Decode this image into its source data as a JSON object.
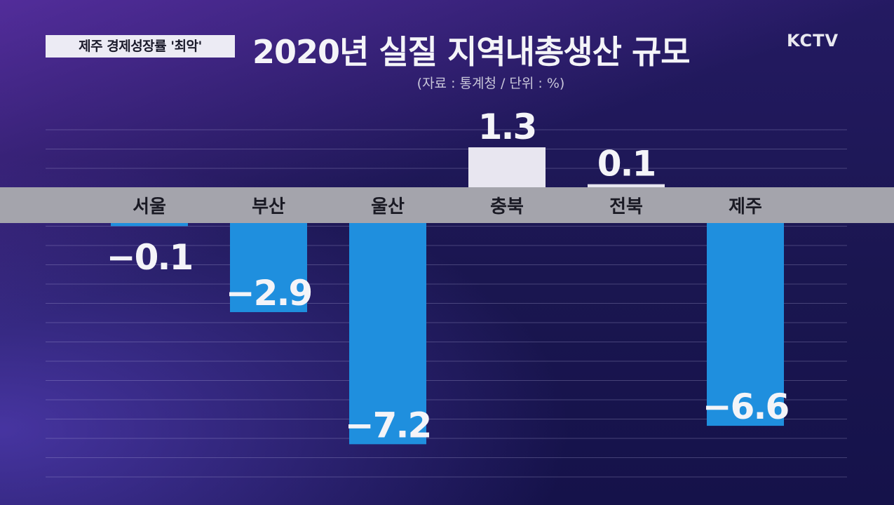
{
  "header": {
    "tag": "제주 경제성장률 '최악'",
    "logo": "KCTV"
  },
  "chart_data": {
    "type": "bar",
    "title": "2020년 실질 지역내총생산 규모",
    "subtitle": "(자료 : 통계청 / 단위 : %)",
    "categories": [
      "서울",
      "부산",
      "울산",
      "충북",
      "전북",
      "제주"
    ],
    "values": [
      -0.1,
      -2.9,
      -7.2,
      1.3,
      0.1,
      -6.6
    ],
    "value_labels": [
      "−0.1",
      "−2.9",
      "−7.2",
      "1.3",
      "0.1",
      "−6.6"
    ],
    "ylim": [
      -7.2,
      1.3
    ],
    "grid": true,
    "colors": {
      "positive": "#e8e6f0",
      "negative": "#1f8fde",
      "axis_band": "#a4a4ac",
      "label": "#f4f4f8"
    }
  }
}
